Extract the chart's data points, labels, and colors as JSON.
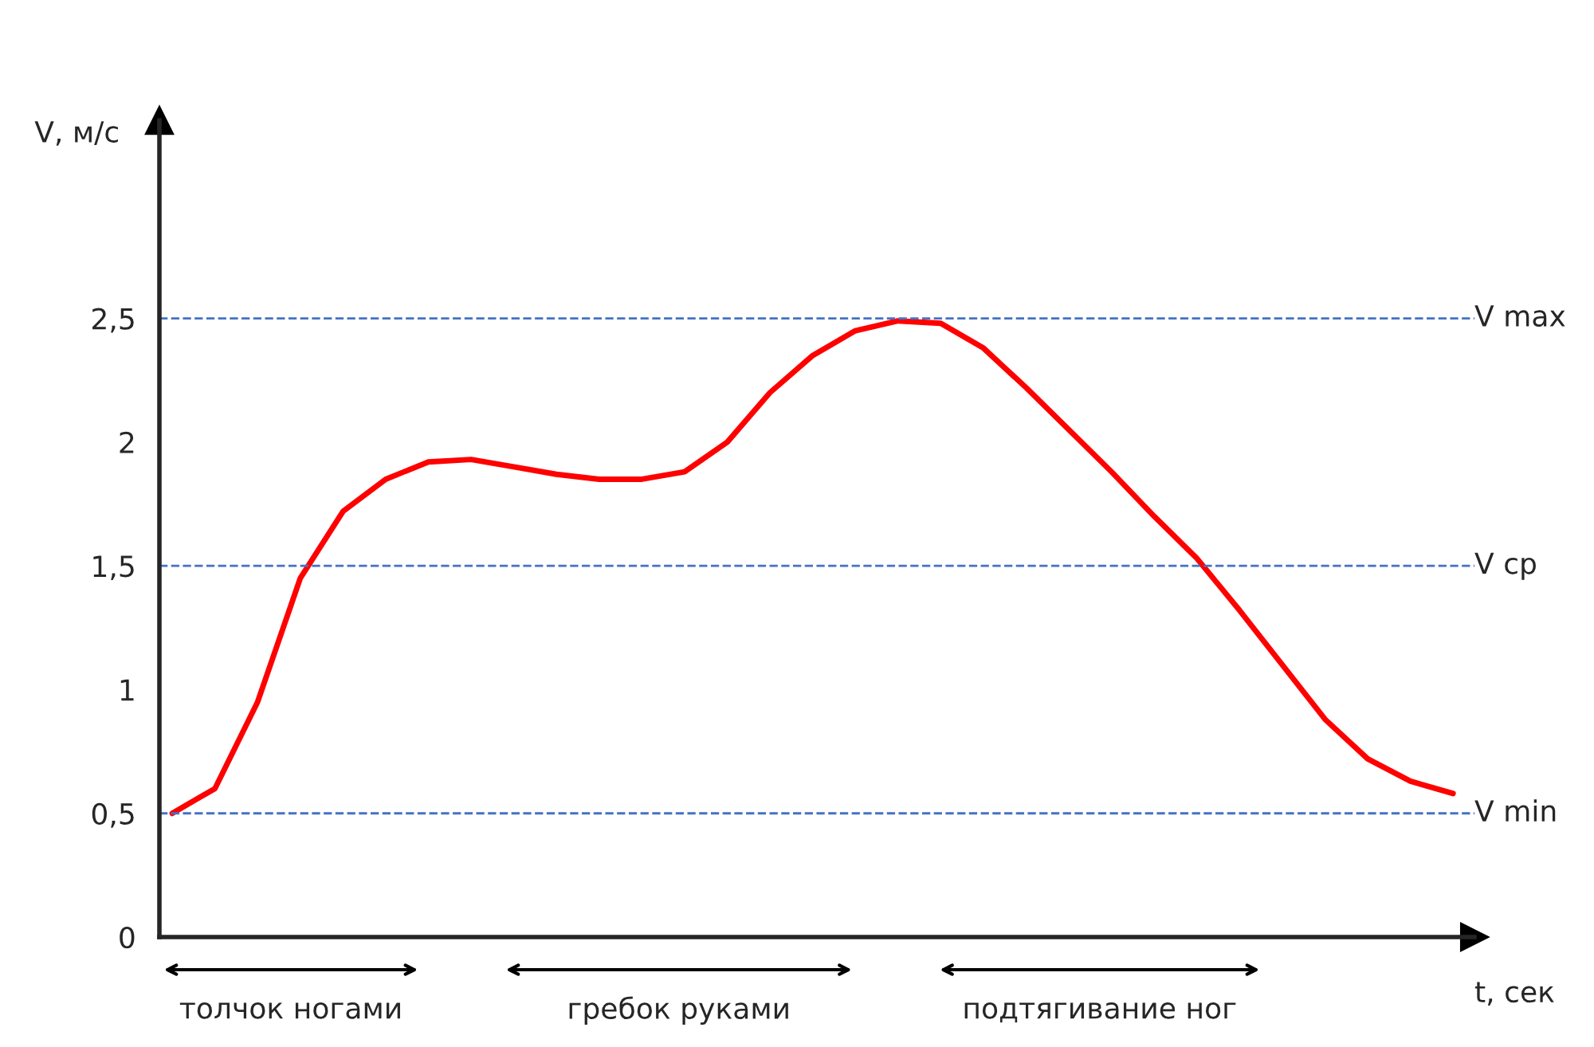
{
  "chart_data": {
    "type": "line",
    "xlabel": "t, сек",
    "ylabel": "V, м/с",
    "categories": [
      null,
      null,
      null,
      null,
      null,
      null,
      null,
      null,
      null,
      null,
      null,
      null,
      null,
      null,
      null,
      null,
      null,
      null,
      null,
      null,
      null,
      null,
      null,
      null,
      null,
      null,
      null,
      null,
      null,
      null,
      null
    ],
    "series": [
      {
        "color": "#ff0000",
        "values": [
          0.5,
          0.6,
          0.95,
          1.45,
          1.72,
          1.85,
          1.92,
          1.93,
          1.9,
          1.87,
          1.85,
          1.85,
          1.88,
          2.0,
          2.2,
          2.35,
          2.45,
          2.49,
          2.48,
          2.38,
          2.22,
          2.05,
          1.88,
          1.7,
          1.53,
          1.32,
          1.1,
          0.88,
          0.72,
          0.63,
          0.58
        ]
      }
    ],
    "ylim": [
      0,
      3.3
    ],
    "yticks": [
      0,
      {
        "value": 0.5,
        "label": "0,5"
      },
      1,
      {
        "value": 1.5,
        "label": "1,5"
      },
      2,
      {
        "value": 2.5,
        "label": "2,5"
      }
    ],
    "ref_lines": [
      {
        "axis": "y",
        "value": 2.5,
        "label": "V max",
        "color": "#4472c4",
        "line_style": "dashed"
      },
      {
        "axis": "y",
        "value": 1.5,
        "label": "V ср",
        "color": "#4472c4",
        "line_style": "dashed"
      },
      {
        "axis": "y",
        "value": 0.5,
        "label": "V min",
        "color": "#4472c4",
        "line_style": "dashed"
      }
    ],
    "annotations": [
      "толчок ногами",
      "гребок руками",
      "подтягивание ног"
    ],
    "grid": false,
    "legend": false,
    "marker": "none",
    "line_style": "solid"
  }
}
